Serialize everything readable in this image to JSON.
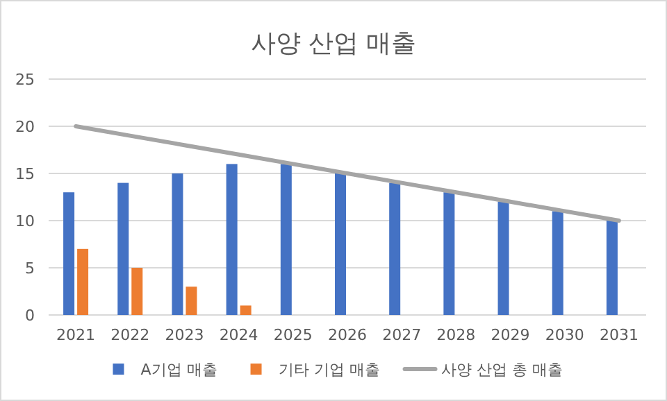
{
  "chart_data": {
    "type": "bar",
    "title": "사양 산업 매출",
    "categories": [
      "2021",
      "2022",
      "2023",
      "2024",
      "2025",
      "2026",
      "2027",
      "2028",
      "2029",
      "2030",
      "2031"
    ],
    "series": [
      {
        "name": "A기업 매출",
        "color": "#4472c4",
        "values": [
          13,
          14,
          15,
          16,
          16,
          15,
          14,
          13,
          12,
          11,
          10
        ]
      },
      {
        "name": "기타 기업 매출",
        "color": "#ed7d31",
        "values": [
          7,
          5,
          3,
          1,
          null,
          null,
          null,
          null,
          null,
          null,
          null
        ]
      },
      {
        "name": "사양 산업 총 매출",
        "type": "line",
        "color": "#a5a5a5",
        "values": [
          20,
          19,
          18,
          17,
          16,
          15,
          14,
          13,
          12,
          11,
          10
        ]
      }
    ],
    "ylim": [
      0,
      25
    ],
    "yticks": [
      0,
      5,
      10,
      15,
      20,
      25
    ],
    "grid": "y",
    "legend": "bottom"
  }
}
